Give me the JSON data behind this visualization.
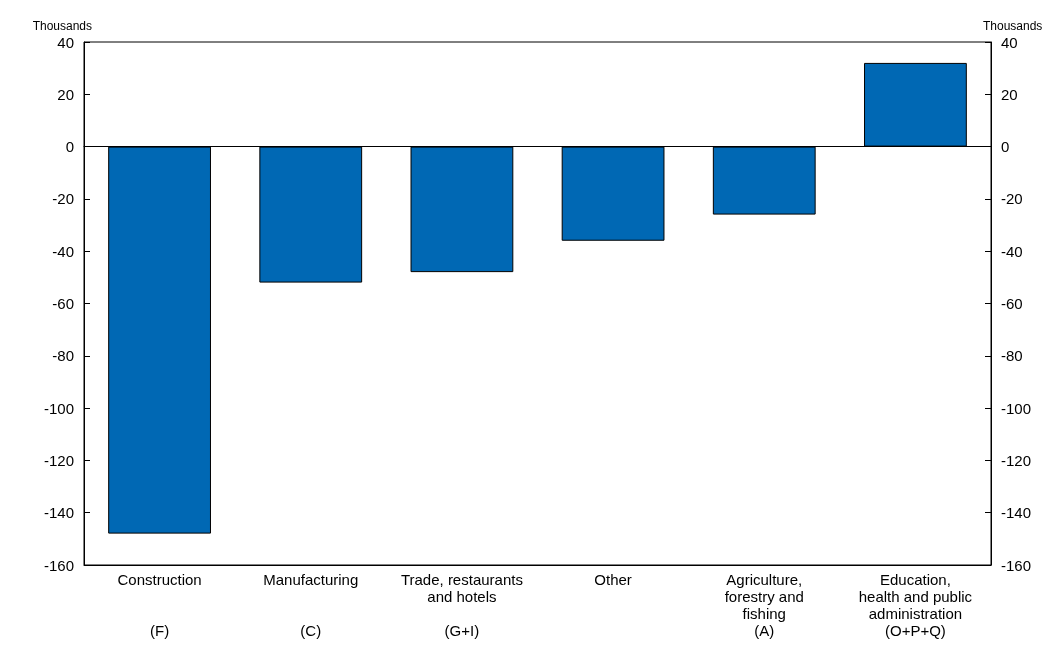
{
  "chart_data": {
    "type": "bar",
    "ylabel": "Thousands",
    "y2label": "Thousands",
    "categories": [
      "Construction\n(F)",
      "Manufacturing\n(C)",
      "Trade, restaurants\nand hotels\n(G+I)",
      "Other",
      "Agriculture,\nforestry and\nfishing\n(A)",
      "Education,\nhealth and public\nadministration\n(O+P+Q)"
    ],
    "values": [
      -148,
      -52,
      -48,
      -36,
      -26,
      32
    ],
    "color": "#0068b4",
    "ylim": [
      -160,
      40
    ],
    "yticks": [
      -160,
      -140,
      -120,
      -100,
      -80,
      -60,
      -40,
      -20,
      0,
      20,
      40
    ],
    "y2lim": [
      -160,
      40
    ],
    "y2ticks": [
      -160,
      -140,
      -120,
      -100,
      -80,
      -60,
      -40,
      -20,
      0,
      20,
      40
    ]
  }
}
